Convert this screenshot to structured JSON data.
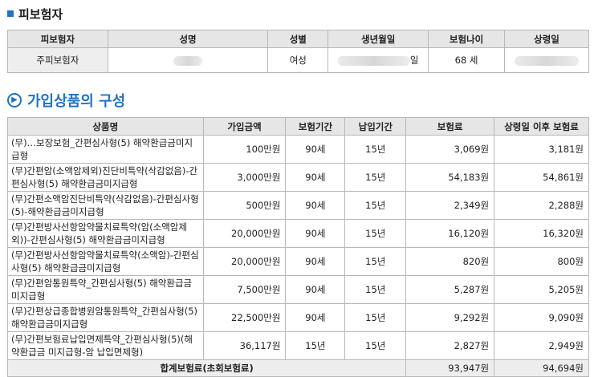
{
  "insured_section": {
    "title": "피보험자",
    "headers": [
      "피보험자",
      "성명",
      "성별",
      "생년월일",
      "보험나이",
      "상령일"
    ],
    "row": {
      "role": "주피보험자",
      "gender": "여성",
      "birth_suffix": "일",
      "age": "68 세"
    }
  },
  "products_section": {
    "title": "가입상품의 구성",
    "headers": [
      "상품명",
      "가입금액",
      "보험기간",
      "납입기간",
      "보험료",
      "상령일 이후 보험료"
    ],
    "rows": [
      {
        "name": "(무)…보장보험_간편심사형(5) 해약환급금미지급형",
        "amount": "100만원",
        "term": "90세",
        "pay_term": "15년",
        "premium": "3,069원",
        "after": "3,181원"
      },
      {
        "name": "(무)간편암(소액암제외)진단비특약(삭감없음)-간편심사형(5) 해약환급금미지급형",
        "amount": "3,000만원",
        "term": "90세",
        "pay_term": "15년",
        "premium": "54,183원",
        "after": "54,861원"
      },
      {
        "name": "(무)간편소액암진단비특약(삭감없음)-간편심사형(5)-해약환급금미지급형",
        "amount": "500만원",
        "term": "90세",
        "pay_term": "15년",
        "premium": "2,349원",
        "after": "2,288원"
      },
      {
        "name": "(무)간편방사선항암약물치료특약(암(소액암제외))-간편심사형(5) 해약환급금미지급형",
        "amount": "20,000만원",
        "term": "90세",
        "pay_term": "15년",
        "premium": "16,120원",
        "after": "16,320원"
      },
      {
        "name": "(무)간편방사선항암약물치료특약(소액암)-간편심사형(5) 해약환급금미지급형",
        "amount": "20,000만원",
        "term": "90세",
        "pay_term": "15년",
        "premium": "820원",
        "after": "800원"
      },
      {
        "name": "(무)간편암통원특약_간편심사형(5) 해약환급금미지급형",
        "amount": "7,500만원",
        "term": "90세",
        "pay_term": "15년",
        "premium": "5,287원",
        "after": "5,205원"
      },
      {
        "name": "(무)간편상급종합병원암통원특약_간편심사형(5) 해약환급금미지급형",
        "amount": "22,500만원",
        "term": "90세",
        "pay_term": "15년",
        "premium": "9,292원",
        "after": "9,090원"
      },
      {
        "name": "(무)간편보험료납입면제특약_간편심사형(5)(해약환급금 미지급형-암 납입면제형)",
        "amount": "36,117원",
        "term": "15년",
        "pay_term": "15년",
        "premium": "2,827원",
        "after": "2,949원"
      }
    ],
    "total": {
      "label": "합계보험료(초회보험료)",
      "premium": "93,947원",
      "after": "94,694원"
    }
  },
  "colors": {
    "accent": "#1e73c8",
    "header_bg": "#e6e6e6",
    "border": "#b8b8b8"
  },
  "icons": {
    "section1": "square-bullet-icon",
    "section2": "circle-chevron-icon"
  }
}
